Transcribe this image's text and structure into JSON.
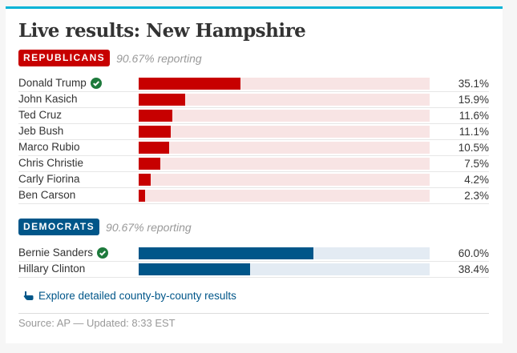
{
  "title": "Live results: New Hampshire",
  "colors": {
    "accent_top": "#00b2d6",
    "republican": "#c70000",
    "republican_track": "#f8e4e4",
    "democrat": "#005689",
    "democrat_track": "#e3ebf3",
    "winner_check": "#1e7a3c"
  },
  "republicans": {
    "label": "REPUBLICANS",
    "reporting": "90.67% reporting",
    "candidates": [
      {
        "name": "Donald Trump",
        "pct": "35.1%",
        "value": 35.1,
        "winner": true
      },
      {
        "name": "John Kasich",
        "pct": "15.9%",
        "value": 15.9,
        "winner": false
      },
      {
        "name": "Ted Cruz",
        "pct": "11.6%",
        "value": 11.6,
        "winner": false
      },
      {
        "name": "Jeb Bush",
        "pct": "11.1%",
        "value": 11.1,
        "winner": false
      },
      {
        "name": "Marco Rubio",
        "pct": "10.5%",
        "value": 10.5,
        "winner": false
      },
      {
        "name": "Chris Christie",
        "pct": "7.5%",
        "value": 7.5,
        "winner": false
      },
      {
        "name": "Carly Fiorina",
        "pct": "4.2%",
        "value": 4.2,
        "winner": false
      },
      {
        "name": "Ben Carson",
        "pct": "2.3%",
        "value": 2.3,
        "winner": false
      }
    ]
  },
  "democrats": {
    "label": "DEMOCRATS",
    "reporting": "90.67% reporting",
    "candidates": [
      {
        "name": "Bernie Sanders",
        "pct": "60.0%",
        "value": 60.0,
        "winner": true
      },
      {
        "name": "Hillary Clinton",
        "pct": "38.4%",
        "value": 38.4,
        "winner": false
      }
    ]
  },
  "explore_link": {
    "label": "Explore detailed county-by-county results",
    "icon": "pointing-hand-icon"
  },
  "source": "Source: AP — Updated: 8:33 EST",
  "icons": {
    "winner": "check-circle-icon"
  }
}
